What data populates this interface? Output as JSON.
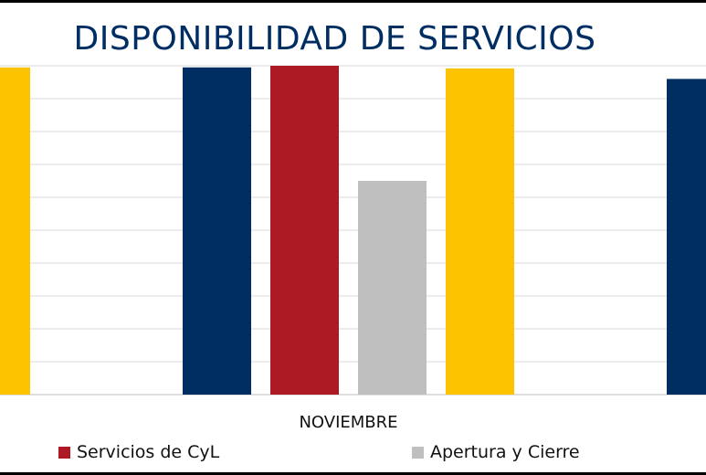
{
  "chart_data": {
    "type": "bar",
    "title": "DISPONIBILIDAD DE SERVICIOS",
    "categories": [
      "NOVIEMBRE"
    ],
    "xlabel": "",
    "ylabel": "",
    "ylim": [
      0,
      100
    ],
    "grid": true,
    "legend_position": "bottom",
    "series": [
      {
        "name": "",
        "color": "#fdc300",
        "values": [
          99.5
        ]
      },
      {
        "name": "",
        "color": "#002d62",
        "values": [
          99.5
        ]
      },
      {
        "name": "Servicios de CyL",
        "color": "#ae1a24",
        "values": [
          100
        ]
      },
      {
        "name": "Apertura y Cierre",
        "color": "#bfbfbf",
        "values": [
          65
        ]
      },
      {
        "name": "",
        "color": "#fdc300",
        "values": [
          99.2
        ]
      },
      {
        "name": "",
        "color": "#002d62",
        "values": [
          96
        ]
      }
    ]
  },
  "legend": [
    {
      "label": "Servicios de CyL",
      "color": "#ae1a24"
    },
    {
      "label": "Apertura y Cierre",
      "color": "#bfbfbf"
    }
  ]
}
